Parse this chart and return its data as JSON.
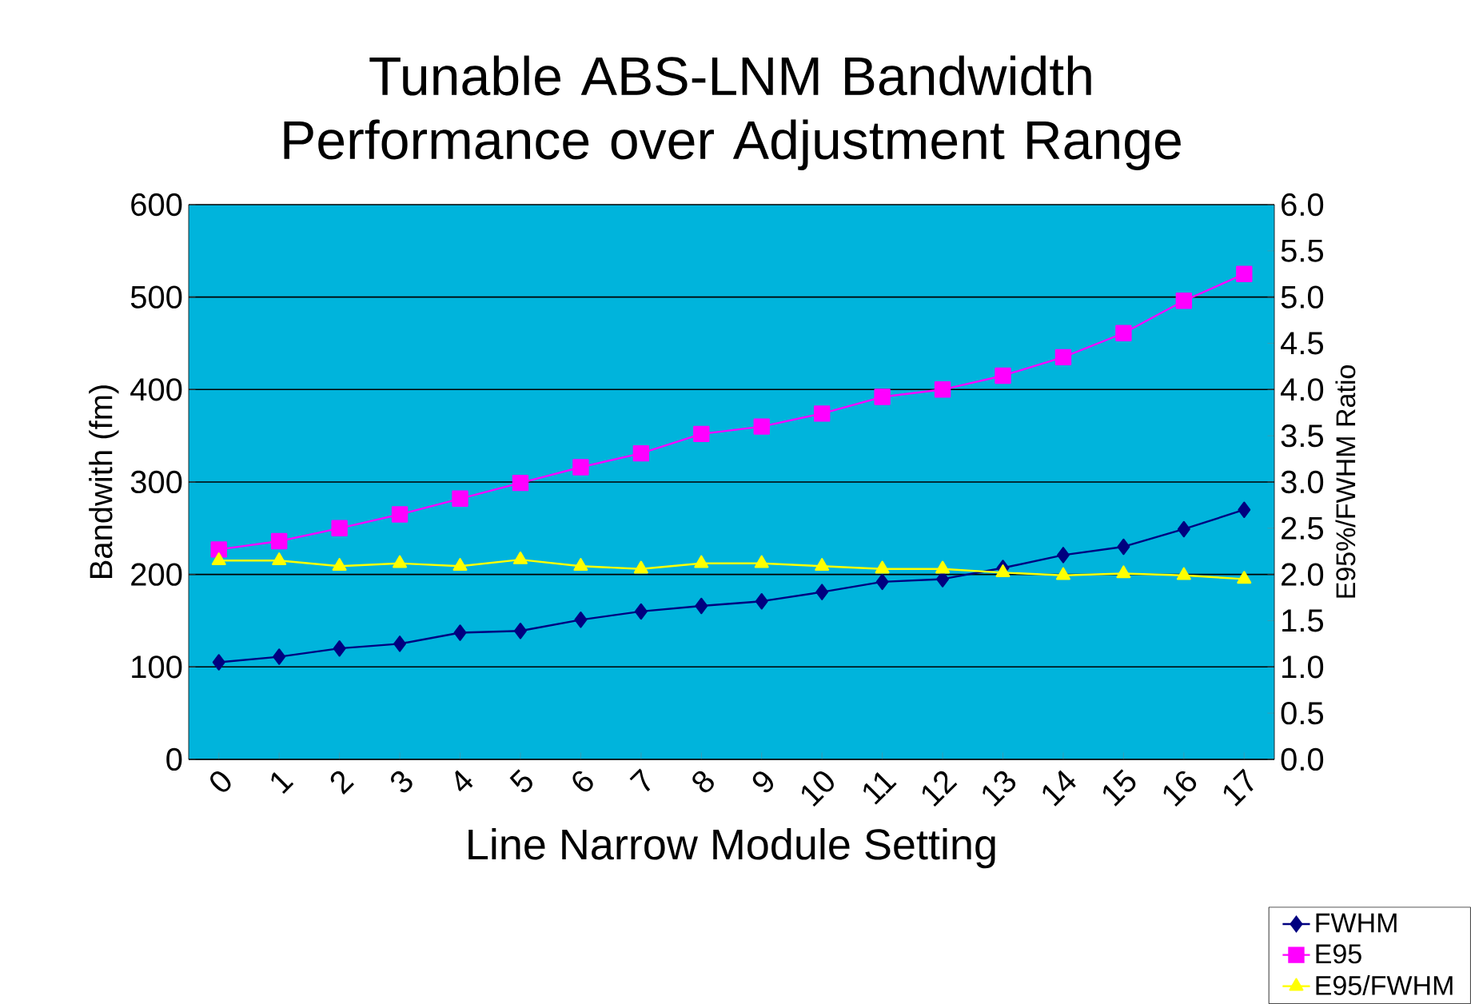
{
  "chart_data": {
    "type": "line",
    "title": "Tunable ABS-LNM Bandwidth Performance over Adjustment Range",
    "xlabel": "Line Narrow Module Setting",
    "ylabel": "Bandwith (fm)",
    "y2label": "E95%/FWHM Ratio",
    "categories": [
      "0",
      "1",
      "2",
      "3",
      "4",
      "5",
      "6",
      "7",
      "8",
      "9",
      "10",
      "11",
      "12",
      "13",
      "14",
      "15",
      "16",
      "17"
    ],
    "series": [
      {
        "name": "FWHM",
        "color": "#000080",
        "marker": "diamond",
        "values": [
          105,
          111,
          120,
          125,
          137,
          139,
          151,
          160,
          166,
          171,
          181,
          192,
          195,
          207,
          221,
          230,
          249,
          270
        ]
      },
      {
        "name": "E95",
        "color": "#ff00ff",
        "marker": "square",
        "values": [
          227,
          236,
          250,
          265,
          282,
          299,
          316,
          331,
          352,
          360,
          374,
          392,
          400,
          415,
          435,
          461,
          496,
          525
        ]
      },
      {
        "name": "E95/FWHM",
        "color": "#ffff00",
        "marker": "triangle",
        "axis": "y2",
        "values": [
          2.15,
          2.15,
          2.09,
          2.12,
          2.09,
          2.16,
          2.09,
          2.06,
          2.12,
          2.12,
          2.09,
          2.06,
          2.06,
          2.02,
          1.99,
          2.01,
          1.99,
          1.95
        ]
      }
    ],
    "ylim": [
      0,
      600
    ],
    "yticks": [
      0,
      100,
      200,
      300,
      400,
      500,
      600
    ],
    "y2lim": [
      0,
      6
    ],
    "y2ticks": [
      {
        "value": 0,
        "label": "0.0"
      },
      {
        "value": 0.5,
        "label": "0.5"
      },
      {
        "value": 1,
        "label": "1.0"
      },
      {
        "value": 1.5,
        "label": "1.5"
      },
      {
        "value": 2,
        "label": "2.0"
      },
      {
        "value": 2.5,
        "label": "2.5"
      },
      {
        "value": 3,
        "label": "3.0"
      },
      {
        "value": 3.5,
        "label": "3.5"
      },
      {
        "value": 4,
        "label": "4.0"
      },
      {
        "value": 4.5,
        "label": "4.5"
      },
      {
        "value": 5,
        "label": "5.0"
      },
      {
        "value": 5.5,
        "label": "5.5"
      },
      {
        "value": 6,
        "label": "6.0"
      }
    ],
    "grid": "y",
    "legend": "bottom right",
    "line_style": "solid"
  }
}
